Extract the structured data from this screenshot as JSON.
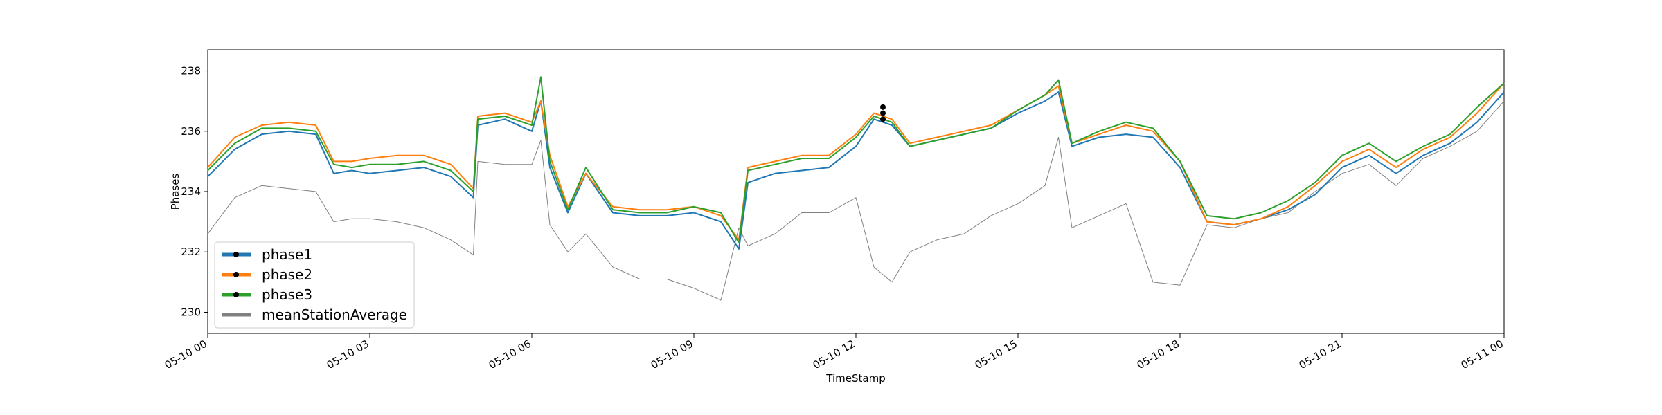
{
  "chart_data": {
    "type": "line",
    "title": "",
    "xlabel": "TimeStamp",
    "ylabel": "Phases",
    "xlim": [
      "2024-05-10 00:00",
      "2024-05-11 00:00"
    ],
    "ylim": [
      229.3,
      238.7
    ],
    "x_tick_labels": [
      "05-10 00",
      "05-10 03",
      "05-10 06",
      "05-10 09",
      "05-10 12",
      "05-10 15",
      "05-10 18",
      "05-10 21",
      "05-11 00"
    ],
    "y_ticks": [
      230,
      232,
      234,
      236,
      238
    ],
    "y_tick_labels": [
      "230",
      "232",
      "234",
      "236",
      "238"
    ],
    "grid": false,
    "legend_position": "lower-left",
    "x": [
      "00:00",
      "00:30",
      "01:00",
      "01:30",
      "02:00",
      "02:20",
      "02:40",
      "03:00",
      "03:30",
      "04:00",
      "04:30",
      "04:55",
      "05:00",
      "05:30",
      "06:00",
      "06:10",
      "06:20",
      "06:40",
      "07:00",
      "07:30",
      "08:00",
      "08:30",
      "09:00",
      "09:30",
      "09:50",
      "10:00",
      "10:30",
      "11:00",
      "11:30",
      "12:00",
      "12:20",
      "12:40",
      "13:00",
      "13:30",
      "14:00",
      "14:30",
      "15:00",
      "15:30",
      "15:45",
      "16:00",
      "16:30",
      "17:00",
      "17:30",
      "18:00",
      "18:30",
      "19:00",
      "19:30",
      "20:00",
      "20:30",
      "21:00",
      "21:30",
      "22:00",
      "22:30",
      "23:00",
      "23:30",
      "24:00"
    ],
    "series": [
      {
        "name": "phase1",
        "color": "#1f77b4",
        "values": [
          234.5,
          235.4,
          235.9,
          236.0,
          235.9,
          234.6,
          234.7,
          234.6,
          234.7,
          234.8,
          234.5,
          233.8,
          236.2,
          236.4,
          236.0,
          237.0,
          234.8,
          233.3,
          234.6,
          233.3,
          233.2,
          233.2,
          233.3,
          233.0,
          232.1,
          234.3,
          234.6,
          234.7,
          234.8,
          235.5,
          236.4,
          236.2,
          235.5,
          235.7,
          235.9,
          236.1,
          236.6,
          237.0,
          237.3,
          235.5,
          235.8,
          235.9,
          235.8,
          234.8,
          233.0,
          232.9,
          233.1,
          233.4,
          233.9,
          234.8,
          235.2,
          234.6,
          235.2,
          235.6,
          236.3,
          237.3
        ]
      },
      {
        "name": "phase2",
        "color": "#ff7f0e",
        "values": [
          234.8,
          235.8,
          236.2,
          236.3,
          236.2,
          235.0,
          235.0,
          235.1,
          235.2,
          235.2,
          234.9,
          234.1,
          236.5,
          236.6,
          236.3,
          237.0,
          235.2,
          233.5,
          234.6,
          233.5,
          233.4,
          233.4,
          233.5,
          233.2,
          232.4,
          234.8,
          235.0,
          235.2,
          235.2,
          235.9,
          236.6,
          236.4,
          235.6,
          235.8,
          236.0,
          236.2,
          236.7,
          237.2,
          237.5,
          235.6,
          235.9,
          236.2,
          236.0,
          235.0,
          233.0,
          232.9,
          233.1,
          233.5,
          234.2,
          235.0,
          235.4,
          234.8,
          235.4,
          235.8,
          236.6,
          237.6
        ]
      },
      {
        "name": "phase3",
        "color": "#2ca02c",
        "values": [
          234.7,
          235.6,
          236.1,
          236.1,
          236.0,
          234.9,
          234.8,
          234.9,
          234.9,
          235.0,
          234.7,
          234.0,
          236.4,
          236.5,
          236.2,
          237.8,
          235.0,
          233.4,
          234.8,
          233.4,
          233.3,
          233.3,
          233.5,
          233.3,
          232.3,
          234.7,
          234.9,
          235.1,
          235.1,
          235.8,
          236.5,
          236.3,
          235.5,
          235.7,
          235.9,
          236.1,
          236.7,
          237.2,
          237.7,
          235.6,
          236.0,
          236.3,
          236.1,
          235.0,
          233.2,
          233.1,
          233.3,
          233.7,
          234.3,
          235.2,
          235.6,
          235.0,
          235.5,
          235.9,
          236.8,
          237.6
        ]
      },
      {
        "name": "meanStationAverage",
        "color": "#808080",
        "values": [
          232.6,
          233.8,
          234.2,
          234.1,
          234.0,
          233.0,
          233.1,
          233.1,
          233.0,
          232.8,
          232.4,
          231.9,
          235.0,
          234.9,
          234.9,
          235.7,
          232.9,
          232.0,
          232.6,
          231.5,
          231.1,
          231.1,
          230.8,
          230.4,
          232.8,
          232.2,
          232.6,
          233.3,
          233.3,
          233.8,
          231.5,
          231.0,
          232.0,
          232.4,
          232.6,
          233.2,
          233.6,
          234.2,
          235.8,
          232.8,
          233.2,
          233.6,
          231.0,
          230.9,
          232.9,
          232.8,
          233.1,
          233.3,
          234.0,
          234.6,
          234.9,
          234.2,
          235.1,
          235.5,
          236.0,
          237.0
        ]
      }
    ],
    "annotations": [
      {
        "type": "marker-points",
        "x": [
          "12:30",
          "12:30",
          "12:30"
        ],
        "y": [
          236.8,
          236.6,
          236.4
        ],
        "color": "#000000"
      }
    ]
  }
}
